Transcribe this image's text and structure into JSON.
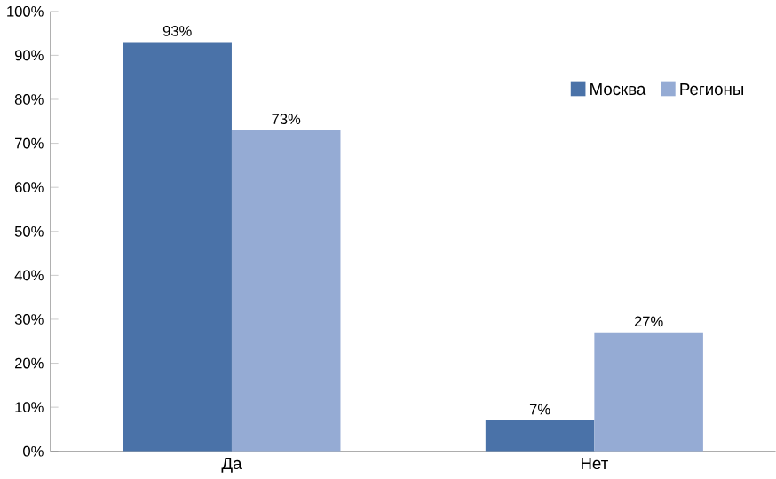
{
  "chart_data": {
    "type": "bar",
    "categories": [
      "Да",
      "Нет"
    ],
    "series": [
      {
        "name": "Москва",
        "color": "#4a72a8",
        "values": [
          93,
          7
        ],
        "value_labels": [
          "93%",
          "7%"
        ]
      },
      {
        "name": "Регионы",
        "color": "#95abd4",
        "values": [
          73,
          27
        ],
        "value_labels": [
          "73%",
          "27%"
        ]
      }
    ],
    "ylim": [
      0,
      100
    ],
    "yticks": [
      {
        "value": 0,
        "label": "0%"
      },
      {
        "value": 10,
        "label": "10%"
      },
      {
        "value": 20,
        "label": "20%"
      },
      {
        "value": 30,
        "label": "30%"
      },
      {
        "value": 40,
        "label": "40%"
      },
      {
        "value": 50,
        "label": "50%"
      },
      {
        "value": 60,
        "label": "60%"
      },
      {
        "value": 70,
        "label": "70%"
      },
      {
        "value": 80,
        "label": "80%"
      },
      {
        "value": 90,
        "label": "90%"
      },
      {
        "value": 100,
        "label": "100%"
      }
    ],
    "grid": false,
    "legend": "right"
  }
}
